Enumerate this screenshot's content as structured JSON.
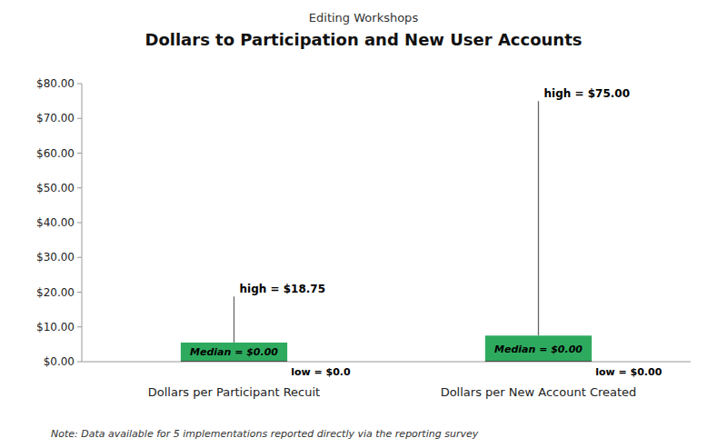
{
  "chart_data": {
    "type": "box",
    "title": "Dollars to Participation and New User Accounts",
    "subtitle": "Editing Workshops",
    "categories": [
      "Dollars per Participant Recuit",
      "Dollars per New Account Created"
    ],
    "boxes": [
      {
        "q1": 0.0,
        "median": 0.0,
        "q3": 5.5,
        "low": 0.0,
        "high": 18.75,
        "median_label": "Median = $0.00",
        "high_label": "high = $18.75",
        "low_label": "low = $0.0"
      },
      {
        "q1": 0.0,
        "median": 0.0,
        "q3": 7.5,
        "low": 0.0,
        "high": 75.0,
        "median_label": "Median = $0.00",
        "high_label": "high = $75.00",
        "low_label": "low = $0.00"
      }
    ],
    "color": "#2EAA5E",
    "ylim": [
      0,
      80
    ],
    "yticks": [
      {
        "value": 0,
        "label": "$0.00"
      },
      {
        "value": 10,
        "label": "$10.00"
      },
      {
        "value": 20,
        "label": "$20.00"
      },
      {
        "value": 30,
        "label": "$30.00"
      },
      {
        "value": 40,
        "label": "$40.00"
      },
      {
        "value": 50,
        "label": "$50.00"
      },
      {
        "value": 60,
        "label": "$60.00"
      },
      {
        "value": 70,
        "label": "$70.00"
      },
      {
        "value": 80,
        "label": "$80.00"
      }
    ],
    "grid": false,
    "note": "Note: Data available for 5 implementations  reported directly via the reporting survey"
  }
}
